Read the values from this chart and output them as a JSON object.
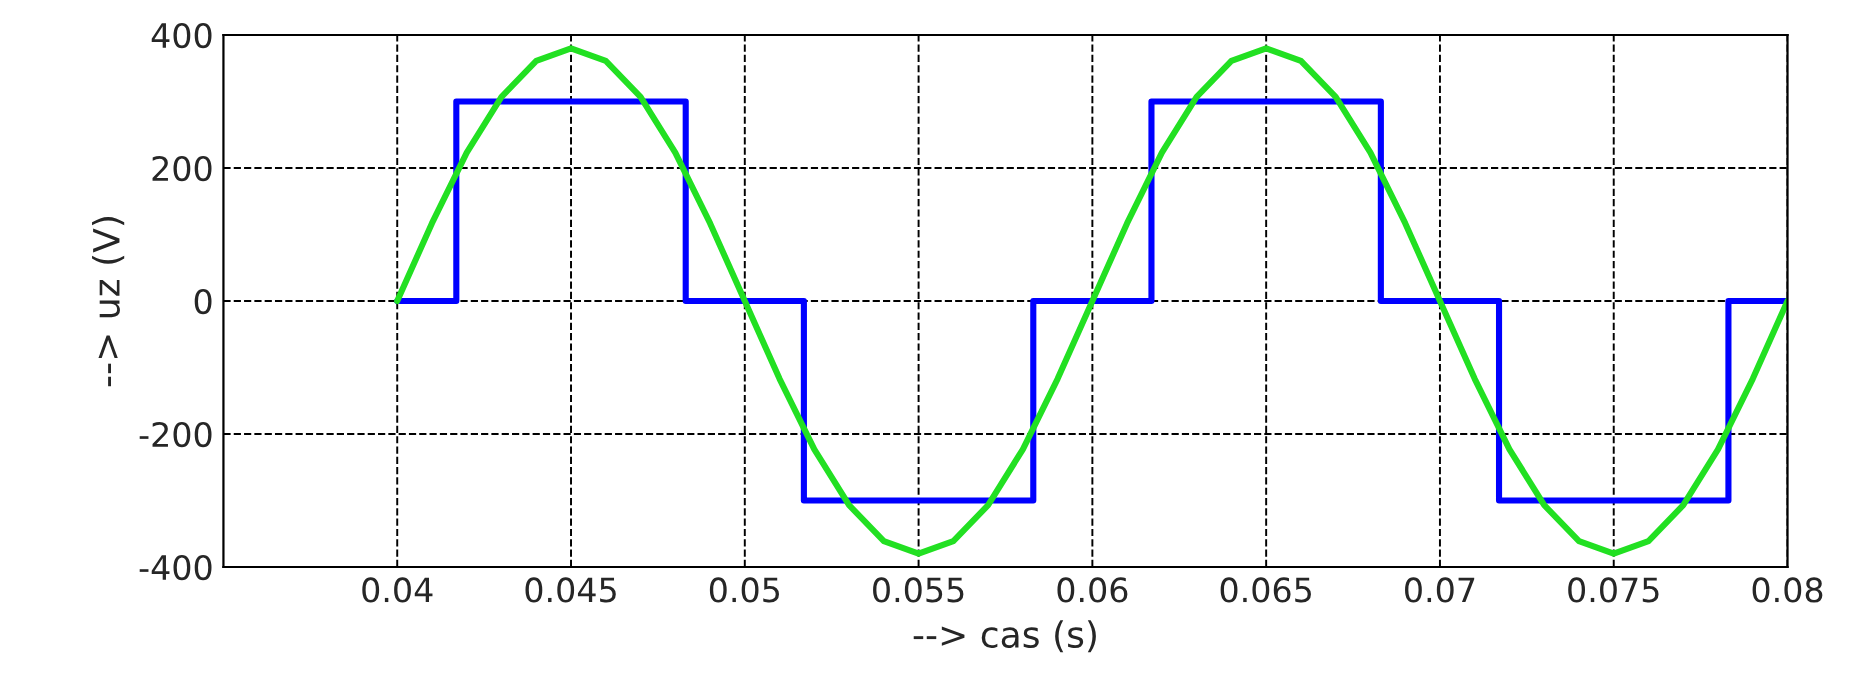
{
  "chart_data": {
    "type": "line",
    "xlabel": "--> cas (s)",
    "ylabel": "--> uz (V)",
    "xlim": [
      0.035,
      0.08
    ],
    "xticks": [
      0.04,
      0.045,
      0.05,
      0.055,
      0.06,
      0.065,
      0.07,
      0.075,
      0.08
    ],
    "ylim": [
      -400,
      400
    ],
    "yticks": [
      -400,
      -200,
      0,
      200,
      400
    ],
    "grid": true,
    "line_style": "solid",
    "series": [
      {
        "type": "step",
        "color": "#0000ff",
        "x": [
          0.04,
          0.0417,
          0.0483,
          0.0517,
          0.0583,
          0.0617,
          0.0683,
          0.0717,
          0.0783,
          0.08
        ],
        "values": [
          0,
          300,
          0,
          -300,
          0,
          300,
          0,
          -300,
          0,
          0
        ]
      },
      {
        "color": "#22e022",
        "x": [
          0.04,
          0.041,
          0.042,
          0.043,
          0.044,
          0.045,
          0.046,
          0.047,
          0.048,
          0.049,
          0.05,
          0.051,
          0.052,
          0.053,
          0.054,
          0.055,
          0.056,
          0.057,
          0.058,
          0.059,
          0.06,
          0.061,
          0.062,
          0.063,
          0.064,
          0.065,
          0.066,
          0.067,
          0.068,
          0.069,
          0.07,
          0.071,
          0.072,
          0.073,
          0.074,
          0.075,
          0.076,
          0.077,
          0.078,
          0.079,
          0.08
        ],
        "values": [
          0,
          117,
          223,
          307,
          361,
          380,
          361,
          307,
          223,
          117,
          0,
          -117,
          -223,
          -307,
          -361,
          -380,
          -361,
          -307,
          -223,
          -117,
          0,
          117,
          223,
          307,
          361,
          380,
          361,
          307,
          223,
          117,
          0,
          -117,
          -223,
          -307,
          -361,
          -380,
          -361,
          -307,
          -223,
          -117,
          0
        ]
      }
    ]
  }
}
